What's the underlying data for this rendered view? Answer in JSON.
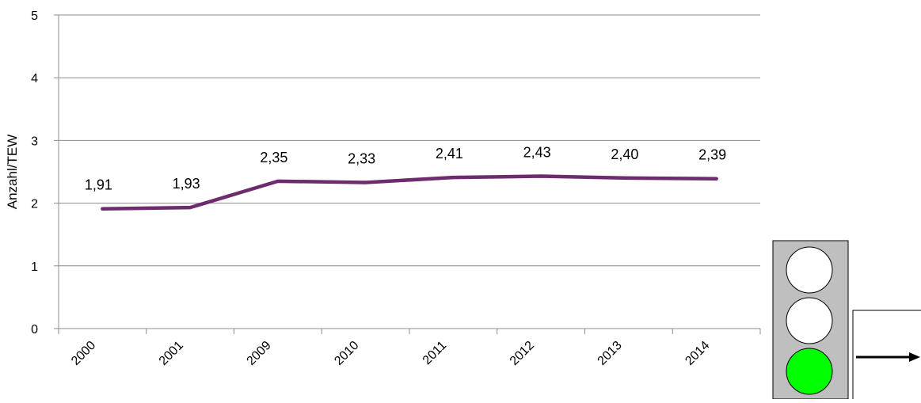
{
  "chart_data": {
    "type": "line",
    "title": "",
    "xlabel": "",
    "ylabel": "Anzahl/TEW",
    "categories": [
      "2000",
      "2001",
      "2009",
      "2010",
      "2011",
      "2012",
      "2013",
      "2014"
    ],
    "series": [
      {
        "values": [
          1.91,
          1.93,
          2.35,
          2.33,
          2.41,
          2.43,
          2.4,
          2.39
        ],
        "data_labels": [
          "1,91",
          "1,93",
          "2,35",
          "2,33",
          "2,41",
          "2,43",
          "2,40",
          "2,39"
        ],
        "color": "#6e2b6e"
      }
    ],
    "ylim": [
      0,
      5
    ],
    "yticks": [
      0,
      1,
      2,
      3,
      4,
      5
    ],
    "grid": "horizontal",
    "legend": "none"
  },
  "indicator": {
    "type": "traffic-light",
    "lights": [
      "off",
      "off",
      "on"
    ],
    "colors": {
      "housing": "#bfbfbf",
      "off": "#ffffff",
      "on": "#00ff00"
    },
    "trend": "arrow-right"
  }
}
